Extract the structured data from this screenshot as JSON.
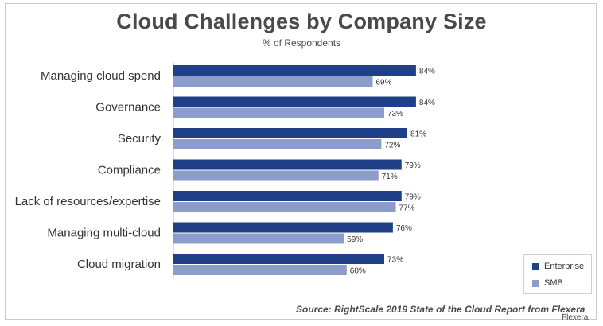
{
  "title": "Cloud Challenges by Company Size",
  "subtitle": "% of Respondents",
  "source": "Source: RightScale 2019 State of the Cloud Report from Flexera",
  "watermark": "Flexera",
  "colors": {
    "enterprise": "#1f3f86",
    "smb": "#8c9dcb"
  },
  "chart_data": {
    "type": "bar",
    "orientation": "horizontal",
    "title": "Cloud Challenges by Company Size",
    "subtitle": "% of Respondents",
    "categories": [
      "Managing cloud spend",
      "Governance",
      "Security",
      "Compliance",
      "Lack of resources/expertise",
      "Managing multi-cloud",
      "Cloud migration"
    ],
    "series": [
      {
        "name": "Enterprise",
        "values": [
          84,
          84,
          81,
          79,
          79,
          76,
          73
        ],
        "labels": [
          "84%",
          "84%",
          "81%",
          "79%",
          "79%",
          "76%",
          "73%"
        ]
      },
      {
        "name": "SMB",
        "values": [
          69,
          73,
          72,
          71,
          77,
          59,
          60
        ],
        "labels": [
          "69%",
          "73%",
          "72%",
          "71%",
          "77%",
          "59%",
          "60%"
        ]
      }
    ],
    "xlim": [
      0,
      100
    ],
    "grid": false,
    "legend": "bottom-right"
  }
}
